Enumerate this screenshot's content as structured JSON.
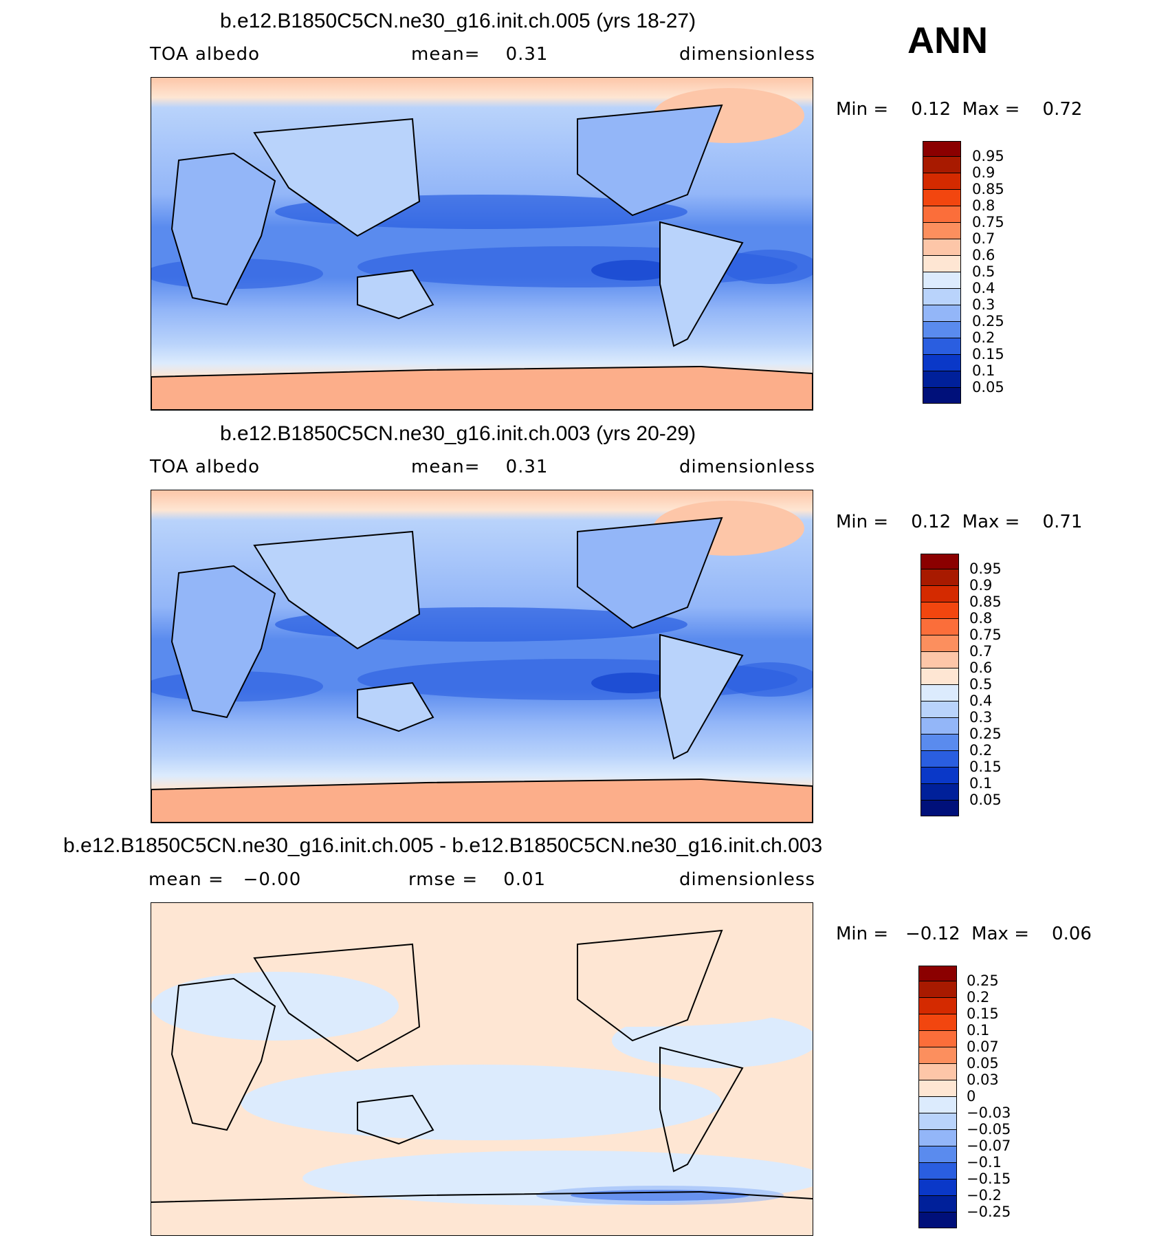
{
  "season": "ANN",
  "panels": [
    {
      "title": "b.e12.B1850C5CN.ne30_g16.init.ch.005 (yrs 18-27)",
      "left_label": "TOA albedo",
      "center_label": "mean=    0.31",
      "right_label": "dimensionless",
      "minmax": "Min =    0.12  Max =    0.72",
      "colorbar_labels": [
        "0.95",
        "0.9",
        "0.85",
        "0.8",
        "0.75",
        "0.7",
        "0.6",
        "0.5",
        "0.4",
        "0.3",
        "0.25",
        "0.2",
        "0.15",
        "0.1",
        "0.05"
      ]
    },
    {
      "title": "b.e12.B1850C5CN.ne30_g16.init.ch.003 (yrs 20-29)",
      "left_label": "TOA albedo",
      "center_label": "mean=    0.31",
      "right_label": "dimensionless",
      "minmax": "Min =    0.12  Max =    0.71",
      "colorbar_labels": [
        "0.95",
        "0.9",
        "0.85",
        "0.8",
        "0.75",
        "0.7",
        "0.6",
        "0.5",
        "0.4",
        "0.3",
        "0.25",
        "0.2",
        "0.15",
        "0.1",
        "0.05"
      ]
    },
    {
      "title": "b.e12.B1850C5CN.ne30_g16.init.ch.005 - b.e12.B1850C5CN.ne30_g16.init.ch.003",
      "left_label": "mean =   −0.00",
      "center_label": "rmse =    0.01",
      "right_label": "dimensionless",
      "minmax": "Min =   −0.12  Max =    0.06",
      "colorbar_labels": [
        "0.25",
        "0.2",
        "0.15",
        "0.1",
        "0.07",
        "0.05",
        "0.03",
        "0",
        "−0.03",
        "−0.05",
        "−0.07",
        "−0.1",
        "−0.15",
        "−0.2",
        "−0.25"
      ]
    }
  ],
  "colors": {
    "palette": [
      "#8B0000",
      "#A81A00",
      "#D42A00",
      "#F2460F",
      "#FB6E3A",
      "#FC8F5E",
      "#FDC6A8",
      "#FEE6D3",
      "#DCEBFD",
      "#B9D3FB",
      "#93B6F8",
      "#5A8BEE",
      "#2A5EE0",
      "#0A38C8",
      "#00209A",
      "#00107A"
    ]
  }
}
